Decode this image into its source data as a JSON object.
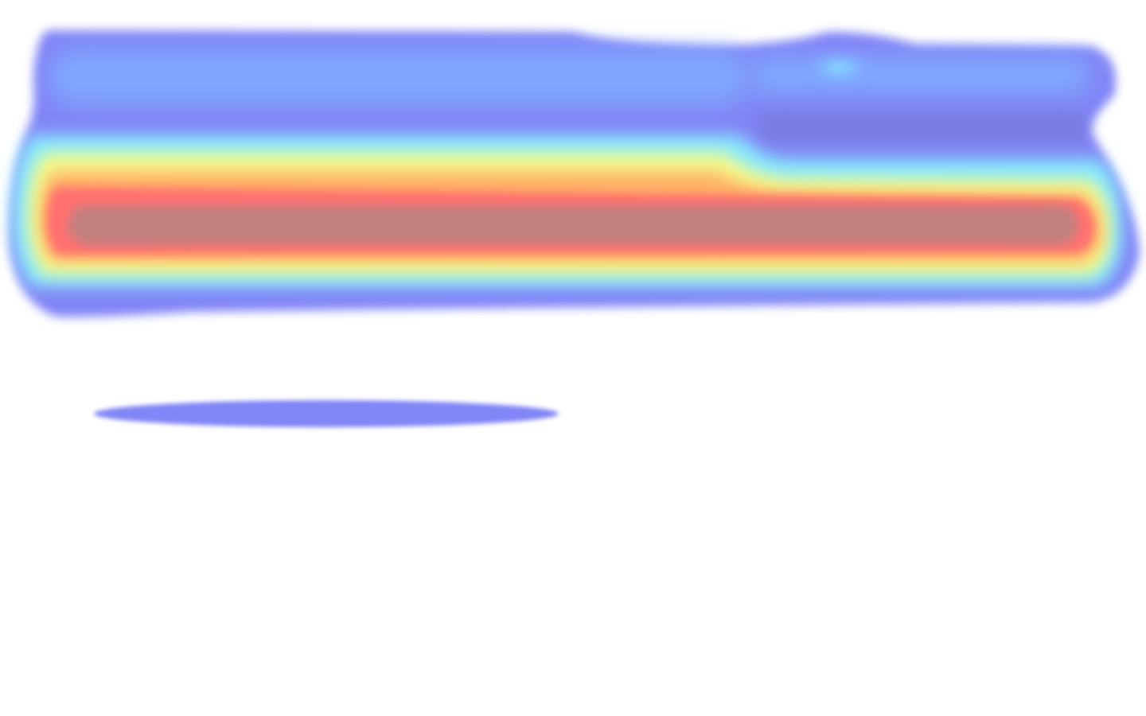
{
  "page": {
    "background": "#ffffff"
  },
  "heatmap": {
    "colormap": [
      "#7b7ff5",
      "#7fa6ff",
      "#86e8ff",
      "#f4ff8a",
      "#ffb166",
      "#ff6f6f",
      "#c48080"
    ],
    "regions": [
      {
        "name": "top-band",
        "intensity": 0.3,
        "hot_spot_intensity": 0.45
      },
      {
        "name": "main-band",
        "intensity": 1.0
      },
      {
        "name": "lower-band",
        "intensity": 0.2
      }
    ]
  }
}
